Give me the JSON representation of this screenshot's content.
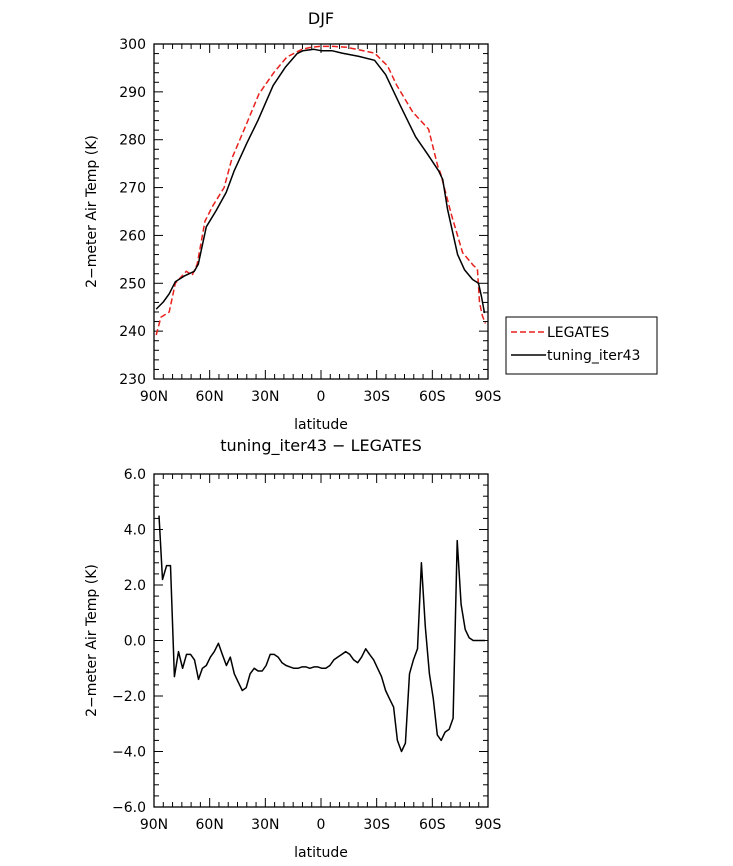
{
  "chart_data": [
    {
      "type": "line",
      "title": "DJF",
      "xlabel": "latitude",
      "ylabel": "2−meter Air Temp (K)",
      "xlim": [
        90,
        -90
      ],
      "ylim": [
        230,
        300
      ],
      "xticks": [
        90,
        60,
        30,
        0,
        -30,
        -60,
        -90
      ],
      "xtick_labels": [
        "90N",
        "60N",
        "30N",
        "0",
        "30S",
        "60S",
        "90S"
      ],
      "yticks": [
        230,
        240,
        250,
        260,
        270,
        280,
        290,
        300
      ],
      "ytick_labels": [
        "230",
        "240",
        "250",
        "260",
        "270",
        "280",
        "290",
        "300"
      ],
      "grid": false,
      "legend": "right",
      "series": [
        {
          "name": "LEGATES",
          "color": "#e8201c",
          "dash": true,
          "x": [
            88.8,
            86.3,
            81.8,
            78.5,
            72.6,
            69.4,
            66.7,
            62.5,
            58.3,
            52.2,
            47.9,
            40.9,
            33.4,
            25.3,
            18.3,
            10.2,
            5.4,
            0.6,
            -6.9,
            -13.8,
            -19.2,
            -28.9,
            -35.9,
            -40.8,
            -49.4,
            -58.0,
            -62.9,
            -64.4,
            -70.4,
            -76.3,
            -82.2,
            -84.3,
            -85.4,
            -87.0,
            -88.6
          ],
          "y": [
            239.2,
            242.9,
            244.0,
            250.0,
            252.5,
            251.7,
            254.0,
            263.0,
            266.2,
            270.0,
            276.2,
            282.6,
            289.6,
            294.1,
            297.3,
            298.9,
            299.3,
            299.5,
            299.5,
            299.3,
            298.9,
            298.1,
            295.4,
            291.4,
            285.8,
            282.2,
            274.5,
            273.0,
            264.2,
            256.4,
            253.7,
            253.0,
            246.0,
            243.2,
            241.6
          ]
        },
        {
          "name": "tuning_iter43",
          "color": "#000000",
          "dash": false,
          "x": [
            88.8,
            85.0,
            81.8,
            78.5,
            73.7,
            68.3,
            66.1,
            61.8,
            56.5,
            51.1,
            46.8,
            39.8,
            33.9,
            25.8,
            19.3,
            12.9,
            9.7,
            3.8,
            0.0,
            -5.9,
            -11.3,
            -20.4,
            -28.9,
            -34.8,
            -42.9,
            -51.0,
            -57.4,
            -63.4,
            -65.6,
            -68.2,
            -73.6,
            -77.4,
            -81.7,
            -84.9,
            -86.5,
            -88.1
          ],
          "y": [
            244.6,
            246.1,
            247.8,
            250.3,
            251.5,
            252.5,
            254.0,
            261.8,
            265.2,
            269.0,
            273.5,
            279.4,
            284.1,
            291.3,
            295.1,
            298.0,
            298.6,
            298.9,
            298.6,
            298.6,
            298.1,
            297.4,
            296.6,
            293.6,
            287.0,
            280.6,
            277.0,
            273.5,
            271.7,
            265.5,
            256.0,
            252.8,
            250.8,
            250.0,
            247.2,
            243.8
          ]
        }
      ]
    },
    {
      "type": "line",
      "title": "tuning_iter43 − LEGATES",
      "xlabel": "latitude",
      "ylabel": "2−meter Air Temp (K)",
      "xlim": [
        90,
        -90
      ],
      "ylim": [
        -6,
        6
      ],
      "xticks": [
        90,
        60,
        30,
        0,
        -30,
        -60,
        -90
      ],
      "xtick_labels": [
        "90N",
        "60N",
        "30N",
        "0",
        "30S",
        "60S",
        "90S"
      ],
      "yticks": [
        -6,
        -4,
        -2,
        0,
        2,
        4,
        6
      ],
      "ytick_labels": [
        "−6.0",
        "−4.0",
        "−2.0",
        "0.0",
        "2.0",
        "4.0",
        "6.0"
      ],
      "grid": false,
      "series": [
        {
          "name": "tuning_iter43 − LEGATES",
          "color": "#000000",
          "dash": false,
          "x": [
            87.3,
            85.4,
            83.2,
            81.1,
            79.0,
            76.8,
            74.6,
            72.5,
            70.3,
            68.2,
            66.0,
            63.9,
            61.8,
            59.6,
            57.5,
            55.3,
            53.2,
            51.0,
            48.9,
            46.7,
            44.6,
            42.4,
            40.3,
            38.2,
            36.0,
            33.9,
            31.7,
            29.6,
            27.4,
            25.3,
            23.1,
            21.0,
            18.8,
            16.7,
            14.6,
            12.4,
            10.3,
            8.1,
            6.0,
            3.8,
            1.7,
            -0.5,
            -2.6,
            -4.8,
            -6.9,
            -9.0,
            -11.2,
            -13.3,
            -15.5,
            -17.6,
            -19.8,
            -21.9,
            -24.1,
            -26.2,
            -28.4,
            -30.5,
            -32.6,
            -34.8,
            -36.9,
            -39.1,
            -41.2,
            -43.4,
            -45.5,
            -47.7,
            -49.8,
            -52.0,
            -54.1,
            -56.2,
            -58.4,
            -60.5,
            -62.7,
            -64.8,
            -66.9,
            -69.1,
            -71.2,
            -73.4,
            -75.5,
            -77.7,
            -79.8,
            -82.0,
            -84.1,
            -86.3,
            -88.4
          ],
          "y": [
            4.5,
            2.2,
            2.7,
            2.7,
            -1.3,
            -0.4,
            -1.0,
            -0.5,
            -0.5,
            -0.7,
            -1.4,
            -1.0,
            -0.9,
            -0.6,
            -0.4,
            -0.1,
            -0.5,
            -0.9,
            -0.6,
            -1.2,
            -1.5,
            -1.8,
            -1.7,
            -1.2,
            -1.0,
            -1.1,
            -1.1,
            -0.9,
            -0.5,
            -0.5,
            -0.6,
            -0.8,
            -0.9,
            -0.95,
            -1.0,
            -1.0,
            -0.95,
            -0.95,
            -1.0,
            -0.95,
            -0.95,
            -1.0,
            -1.0,
            -0.9,
            -0.7,
            -0.6,
            -0.5,
            -0.4,
            -0.5,
            -0.7,
            -0.8,
            -0.6,
            -0.3,
            -0.5,
            -0.7,
            -1.0,
            -1.3,
            -1.8,
            -2.1,
            -2.4,
            -3.6,
            -4.0,
            -3.7,
            -1.2,
            -0.7,
            -0.3,
            2.8,
            0.5,
            -1.2,
            -2.1,
            -3.4,
            -3.6,
            -3.3,
            -3.2,
            -2.8,
            3.6,
            1.3,
            0.4,
            0.1,
            0.0,
            0.0,
            0.0,
            0.0
          ]
        }
      ]
    }
  ]
}
